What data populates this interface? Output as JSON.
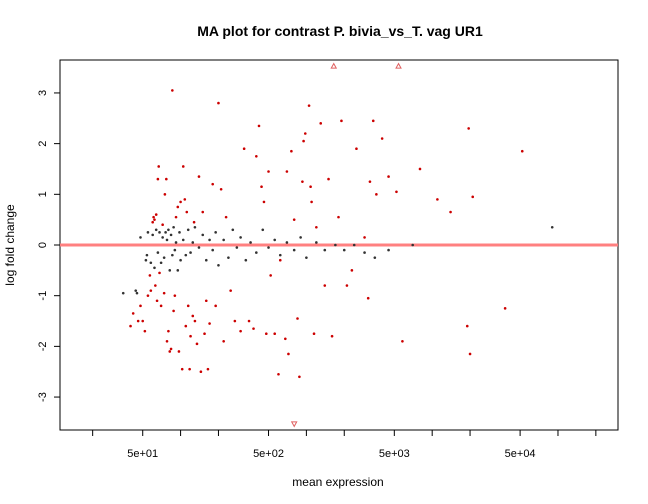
{
  "chart_data": {
    "type": "scatter",
    "title": "MA plot for contrast P. bivia_vs_T. vag UR1",
    "xlabel": "mean expression",
    "ylabel": "log fold change",
    "x_scale": "log10",
    "xlim": [
      11,
      300000
    ],
    "ylim": [
      -3.65,
      3.65
    ],
    "x_ticks": [
      10,
      20,
      50,
      100,
      200,
      500,
      1000,
      2000,
      5000,
      10000,
      20000,
      50000,
      100000,
      200000
    ],
    "x_tick_labels": [
      {
        "value": 50,
        "label": "5e+01"
      },
      {
        "value": 500,
        "label": "5e+02"
      },
      {
        "value": 5000,
        "label": "5e+03"
      },
      {
        "value": 50000,
        "label": "5e+04"
      }
    ],
    "y_ticks": [
      -3,
      -2,
      -1,
      0,
      1,
      2,
      3
    ],
    "y_tick_labels": [
      "-3",
      "-2",
      "-1",
      "0",
      "1",
      "2",
      "3"
    ],
    "reference_line": {
      "y": 0,
      "color": "#ff8080"
    },
    "colors": {
      "significant": "#cc0000",
      "not_significant": "#333333",
      "out_of_range": "#e06060"
    },
    "grid": false,
    "legend": "none",
    "series": [
      {
        "significant": true,
        "points": [
          [
            40,
            -1.6
          ],
          [
            42,
            -1.35
          ],
          [
            46,
            -1.5
          ],
          [
            48,
            -1.2
          ],
          [
            50,
            -1.5
          ],
          [
            52,
            -1.7
          ],
          [
            55,
            -1.0
          ],
          [
            57,
            -0.6
          ],
          [
            58,
            -0.9
          ],
          [
            60,
            0.45
          ],
          [
            61,
            0.55
          ],
          [
            62,
            0.5
          ],
          [
            63,
            -0.8
          ],
          [
            64,
            0.6
          ],
          [
            65,
            -1.1
          ],
          [
            66,
            1.3
          ],
          [
            67,
            1.55
          ],
          [
            68,
            -0.55
          ],
          [
            70,
            -1.2
          ],
          [
            72,
            0.4
          ],
          [
            74,
            -0.95
          ],
          [
            75,
            1.0
          ],
          [
            77,
            1.3
          ],
          [
            78,
            -1.9
          ],
          [
            80,
            -1.7
          ],
          [
            82,
            -2.1
          ],
          [
            84,
            -2.05
          ],
          [
            86,
            3.05
          ],
          [
            88,
            -1.3
          ],
          [
            90,
            -1.0
          ],
          [
            92,
            0.55
          ],
          [
            95,
            0.75
          ],
          [
            97,
            -2.1
          ],
          [
            100,
            0.85
          ],
          [
            103,
            -2.45
          ],
          [
            105,
            1.55
          ],
          [
            108,
            0.9
          ],
          [
            110,
            -1.6
          ],
          [
            112,
            0.65
          ],
          [
            115,
            -1.2
          ],
          [
            118,
            -2.45
          ],
          [
            120,
            -1.8
          ],
          [
            125,
            -1.4
          ],
          [
            128,
            0.45
          ],
          [
            130,
            -1.5
          ],
          [
            135,
            -1.95
          ],
          [
            140,
            1.35
          ],
          [
            145,
            -2.5
          ],
          [
            150,
            0.65
          ],
          [
            155,
            -1.75
          ],
          [
            160,
            -1.1
          ],
          [
            165,
            -2.45
          ],
          [
            170,
            -1.55
          ],
          [
            180,
            1.2
          ],
          [
            190,
            -1.2
          ],
          [
            200,
            2.8
          ],
          [
            210,
            1.1
          ],
          [
            220,
            -1.9
          ],
          [
            230,
            0.55
          ],
          [
            250,
            -0.9
          ],
          [
            270,
            -1.5
          ],
          [
            300,
            -1.7
          ],
          [
            320,
            1.9
          ],
          [
            350,
            -1.5
          ],
          [
            380,
            -1.65
          ],
          [
            400,
            1.75
          ],
          [
            420,
            2.35
          ],
          [
            440,
            1.15
          ],
          [
            460,
            0.85
          ],
          [
            480,
            -1.75
          ],
          [
            500,
            1.45
          ],
          [
            520,
            -0.6
          ],
          [
            560,
            -1.75
          ],
          [
            600,
            -2.55
          ],
          [
            620,
            -0.3
          ],
          [
            680,
            -1.85
          ],
          [
            700,
            1.45
          ],
          [
            720,
            -2.15
          ],
          [
            760,
            1.85
          ],
          [
            800,
            0.5
          ],
          [
            850,
            -1.45
          ],
          [
            880,
            -2.6
          ],
          [
            930,
            1.25
          ],
          [
            950,
            2.05
          ],
          [
            980,
            2.2
          ],
          [
            1050,
            2.75
          ],
          [
            1080,
            1.15
          ],
          [
            1100,
            0.85
          ],
          [
            1150,
            -1.75
          ],
          [
            1200,
            0.35
          ],
          [
            1300,
            2.4
          ],
          [
            1400,
            -0.8
          ],
          [
            1500,
            1.3
          ],
          [
            1600,
            -1.8
          ],
          [
            1800,
            0.55
          ],
          [
            1900,
            2.45
          ],
          [
            2100,
            -0.8
          ],
          [
            2300,
            -0.5
          ],
          [
            2500,
            1.9
          ],
          [
            2900,
            0.15
          ],
          [
            3100,
            -1.05
          ],
          [
            3200,
            1.25
          ],
          [
            3400,
            2.45
          ],
          [
            3600,
            1.0
          ],
          [
            4000,
            2.1
          ],
          [
            4500,
            1.35
          ],
          [
            5200,
            1.05
          ],
          [
            5800,
            -1.9
          ],
          [
            8000,
            1.5
          ],
          [
            11000,
            0.9
          ],
          [
            14000,
            0.65
          ],
          [
            19000,
            -1.6
          ],
          [
            19500,
            2.3
          ],
          [
            20000,
            -2.15
          ],
          [
            21000,
            0.95
          ],
          [
            38000,
            -1.25
          ],
          [
            52000,
            1.85
          ]
        ]
      },
      {
        "significant": false,
        "points": [
          [
            35,
            -0.95
          ],
          [
            44,
            -0.9
          ],
          [
            45,
            -0.95
          ],
          [
            48,
            0.15
          ],
          [
            53,
            -0.3
          ],
          [
            54,
            -0.2
          ],
          [
            55,
            0.25
          ],
          [
            58,
            -0.35
          ],
          [
            60,
            0.2
          ],
          [
            62,
            -0.45
          ],
          [
            64,
            0.3
          ],
          [
            66,
            -0.15
          ],
          [
            68,
            0.25
          ],
          [
            70,
            -0.35
          ],
          [
            72,
            0.15
          ],
          [
            74,
            -0.25
          ],
          [
            76,
            0.25
          ],
          [
            78,
            0.1
          ],
          [
            80,
            0.3
          ],
          [
            82,
            -0.5
          ],
          [
            84,
            0.2
          ],
          [
            86,
            -0.2
          ],
          [
            88,
            0.35
          ],
          [
            90,
            -0.1
          ],
          [
            92,
            0.05
          ],
          [
            95,
            -0.5
          ],
          [
            98,
            0.25
          ],
          [
            100,
            -0.3
          ],
          [
            105,
            0.1
          ],
          [
            110,
            -0.2
          ],
          [
            115,
            0.3
          ],
          [
            120,
            -0.15
          ],
          [
            125,
            0.05
          ],
          [
            130,
            0.35
          ],
          [
            140,
            -0.05
          ],
          [
            150,
            0.2
          ],
          [
            160,
            -0.3
          ],
          [
            170,
            0.1
          ],
          [
            180,
            -0.1
          ],
          [
            190,
            0.25
          ],
          [
            200,
            -0.4
          ],
          [
            220,
            0.1
          ],
          [
            240,
            -0.25
          ],
          [
            260,
            0.3
          ],
          [
            280,
            -0.05
          ],
          [
            300,
            0.15
          ],
          [
            330,
            -0.3
          ],
          [
            360,
            0.05
          ],
          [
            400,
            -0.15
          ],
          [
            450,
            0.3
          ],
          [
            500,
            -0.05
          ],
          [
            560,
            0.1
          ],
          [
            620,
            -0.2
          ],
          [
            700,
            0.05
          ],
          [
            800,
            -0.1
          ],
          [
            900,
            0.15
          ],
          [
            1000,
            -0.25
          ],
          [
            1200,
            0.05
          ],
          [
            1400,
            -0.1
          ],
          [
            1700,
            0.0
          ],
          [
            2000,
            -0.1
          ],
          [
            2400,
            0.0
          ],
          [
            2900,
            -0.15
          ],
          [
            3500,
            -0.25
          ],
          [
            4500,
            -0.1
          ],
          [
            7000,
            0.0
          ],
          [
            90000,
            0.35
          ]
        ]
      },
      {
        "out_of_range": true,
        "points": [
          [
            1650,
            3.65,
            "up"
          ],
          [
            5400,
            3.65,
            "up"
          ],
          [
            800,
            -3.65,
            "down"
          ]
        ]
      }
    ]
  }
}
